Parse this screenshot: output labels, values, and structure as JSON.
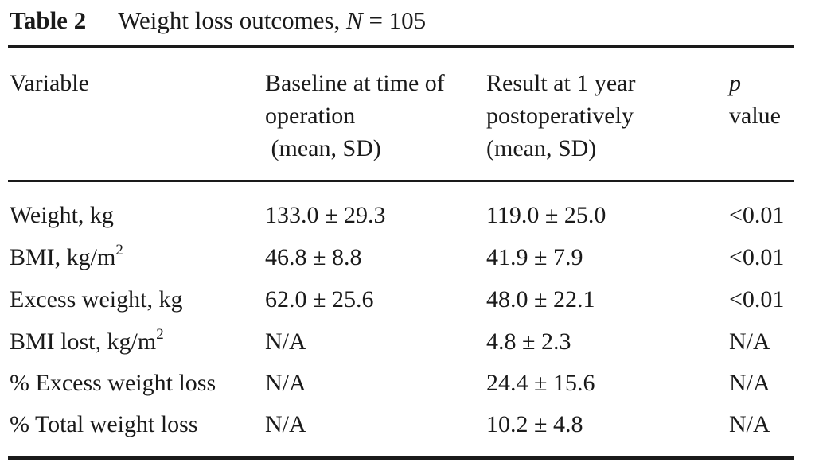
{
  "caption": {
    "label": "Table 2",
    "title_text": "Weight loss outcomes, ",
    "n_symbol": "N",
    "n_value": " = 105"
  },
  "headers": {
    "variable": "Variable",
    "baseline": [
      "Baseline at time of",
      "operation",
      " (mean, SD)"
    ],
    "result": [
      "Result at 1 year",
      "postoperatively",
      "(mean, SD)"
    ],
    "p_symbol": "p",
    "p_word": "value"
  },
  "rows": [
    {
      "variable": "Weight, kg",
      "baseline": "133.0 ± 29.3",
      "result": "119.0 ± 25.0",
      "p": "<0.01"
    },
    {
      "variable": "BMI, kg/m",
      "variable_sup": "2",
      "baseline": "46.8 ± 8.8",
      "result": "41.9 ± 7.9",
      "p": "<0.01"
    },
    {
      "variable": "Excess weight, kg",
      "baseline": "62.0 ± 25.6",
      "result": "48.0 ± 22.1",
      "p": "<0.01"
    },
    {
      "variable": "BMI lost, kg/m",
      "variable_sup": "2",
      "baseline": "N/A",
      "result": "4.8 ± 2.3",
      "p": "N/A"
    },
    {
      "variable": "% Excess weight loss",
      "baseline": "N/A",
      "result": "24.4 ± 15.6",
      "p": "N/A"
    },
    {
      "variable": "% Total weight loss",
      "baseline": "N/A",
      "result": "10.2 ± 4.8",
      "p": "N/A"
    }
  ]
}
